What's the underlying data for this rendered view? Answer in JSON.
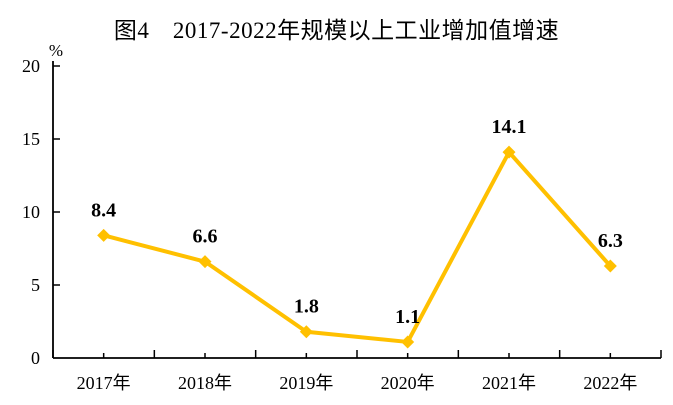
{
  "title": "图4　2017-2022年规模以上工业增加值增速",
  "chart_data": {
    "type": "line",
    "title": "图4　2017-2022年规模以上工业增加值增速",
    "categories": [
      "2017年",
      "2018年",
      "2019年",
      "2020年",
      "2021年",
      "2022年"
    ],
    "values": [
      8.4,
      6.6,
      1.8,
      1.1,
      14.1,
      6.3
    ],
    "data_labels": [
      "8.4",
      "6.6",
      "1.8",
      "1.1",
      "14.1",
      "6.3"
    ],
    "unit_label": "%",
    "xlabel": "",
    "ylabel": "%",
    "ylim": [
      0,
      20
    ],
    "yticks": [
      0,
      5,
      10,
      15,
      20
    ],
    "grid": false,
    "legend": "none",
    "marker": "diamond",
    "line_color": "#FFC000",
    "marker_color": "#FFC000",
    "axis_color": "#000000",
    "text_color": "#000000",
    "background_color": "#FFFFFF"
  }
}
